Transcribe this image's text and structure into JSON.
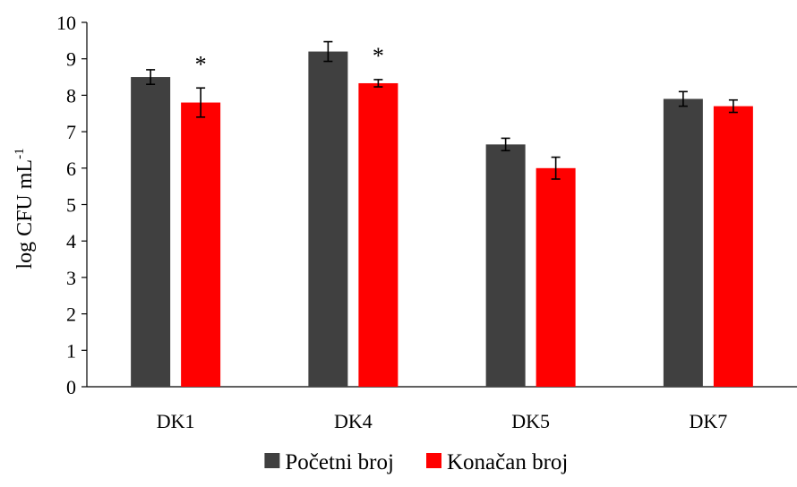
{
  "chart_data": {
    "type": "bar",
    "title": "",
    "xlabel": "",
    "ylabel": "log CFU mL",
    "ylabel_superscript": "-1",
    "ylim": [
      0,
      10
    ],
    "yticks": [
      "0",
      "1",
      "2",
      "3",
      "4",
      "5",
      "6",
      "7",
      "8",
      "9",
      "10"
    ],
    "grid": false,
    "legend_position": "bottom",
    "categories": [
      "DK1",
      "DK4",
      "DK5",
      "DK7"
    ],
    "series": [
      {
        "name": "Početni broj",
        "color": "#404040",
        "values": [
          8.5,
          9.2,
          6.65,
          7.9
        ],
        "errors": [
          0.2,
          0.27,
          0.17,
          0.2
        ]
      },
      {
        "name": "Konačan broj",
        "color": "#ff0000",
        "values": [
          7.8,
          8.33,
          6.0,
          7.7
        ],
        "errors": [
          0.4,
          0.1,
          0.3,
          0.17
        ]
      }
    ],
    "annotations": [
      {
        "category": "DK1",
        "series": 1,
        "text": "*"
      },
      {
        "category": "DK4",
        "series": 1,
        "text": "*"
      }
    ]
  }
}
